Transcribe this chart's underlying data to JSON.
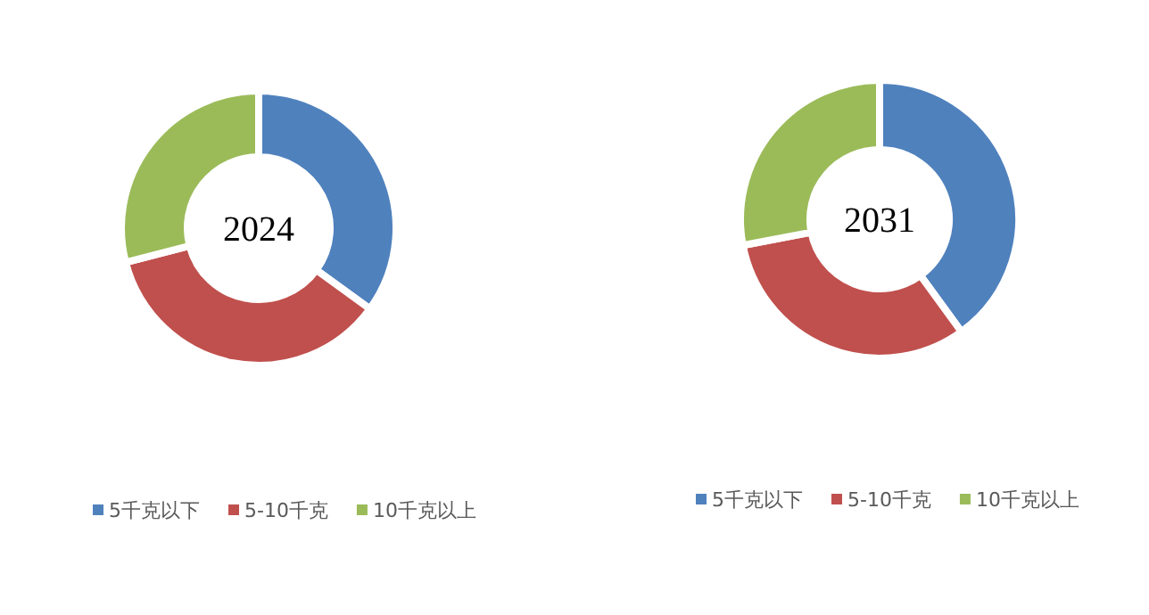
{
  "chart_data": [
    {
      "type": "donut",
      "title": "2024",
      "categories": [
        "5千克以下",
        "5-10千克",
        "10千克以上"
      ],
      "values": [
        35,
        36,
        29
      ],
      "colors": [
        "#4f81bd",
        "#c0504d",
        "#9bbb59"
      ],
      "legend": "bottom"
    },
    {
      "type": "donut",
      "title": "2031",
      "categories": [
        "5千克以下",
        "5-10千克",
        "10千克以上"
      ],
      "values": [
        40,
        32,
        28
      ],
      "colors": [
        "#4f81bd",
        "#c0504d",
        "#9bbb59"
      ],
      "legend": "bottom"
    }
  ]
}
